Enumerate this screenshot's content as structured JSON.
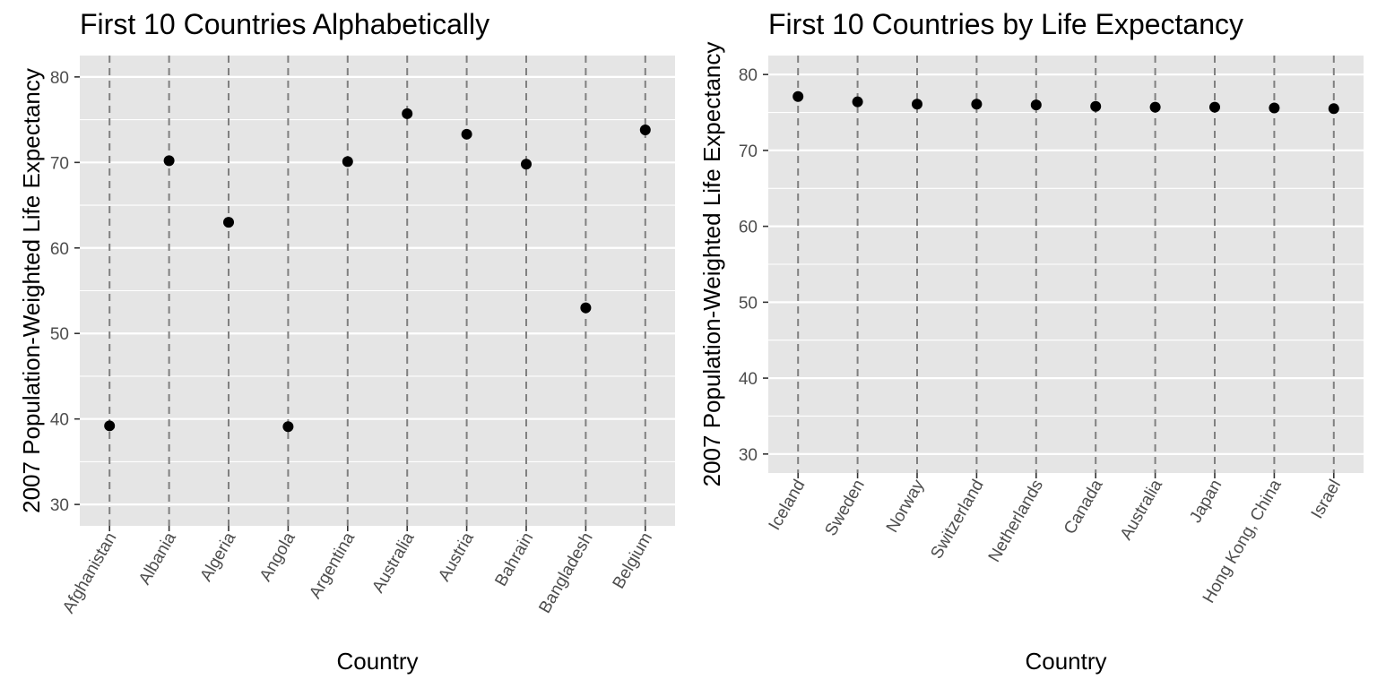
{
  "chart_data": [
    {
      "type": "scatter",
      "title": "First 10 Countries Alphabetically",
      "xlabel": "Country",
      "ylabel": "2007 Population-Weighted Life Expectancy",
      "categories": [
        "Afghanistan",
        "Albania",
        "Algeria",
        "Angola",
        "Argentina",
        "Australia",
        "Austria",
        "Bahrain",
        "Bangladesh",
        "Belgium"
      ],
      "values": [
        39.2,
        70.2,
        63.0,
        39.1,
        70.1,
        75.7,
        73.3,
        69.8,
        53.0,
        73.8
      ],
      "ylim": [
        27.5,
        82.5
      ],
      "yticks": [
        30,
        40,
        50,
        60,
        70,
        80
      ],
      "grid": true,
      "vertical_dashed_lines": true,
      "colors": {
        "panel": "#e5e5e5",
        "grid": "#ffffff",
        "point": "#000000",
        "dashed_line": "#808080"
      }
    },
    {
      "type": "scatter",
      "title": "First 10 Countries by Life Expectancy",
      "xlabel": "Country",
      "ylabel": "2007 Population-Weighted Life Expectancy",
      "categories": [
        "Iceland",
        "Sweden",
        "Norway",
        "Switzerland",
        "Netherlands",
        "Canada",
        "Australia",
        "Japan",
        "Hong Kong, China",
        "Israel"
      ],
      "values": [
        77.1,
        76.4,
        76.1,
        76.1,
        76.0,
        75.8,
        75.7,
        75.7,
        75.6,
        75.5
      ],
      "ylim": [
        27.5,
        82.5
      ],
      "yticks": [
        30,
        40,
        50,
        60,
        70,
        80
      ],
      "grid": true,
      "vertical_dashed_lines": true,
      "colors": {
        "panel": "#e5e5e5",
        "grid": "#ffffff",
        "point": "#000000",
        "dashed_line": "#808080"
      }
    }
  ]
}
